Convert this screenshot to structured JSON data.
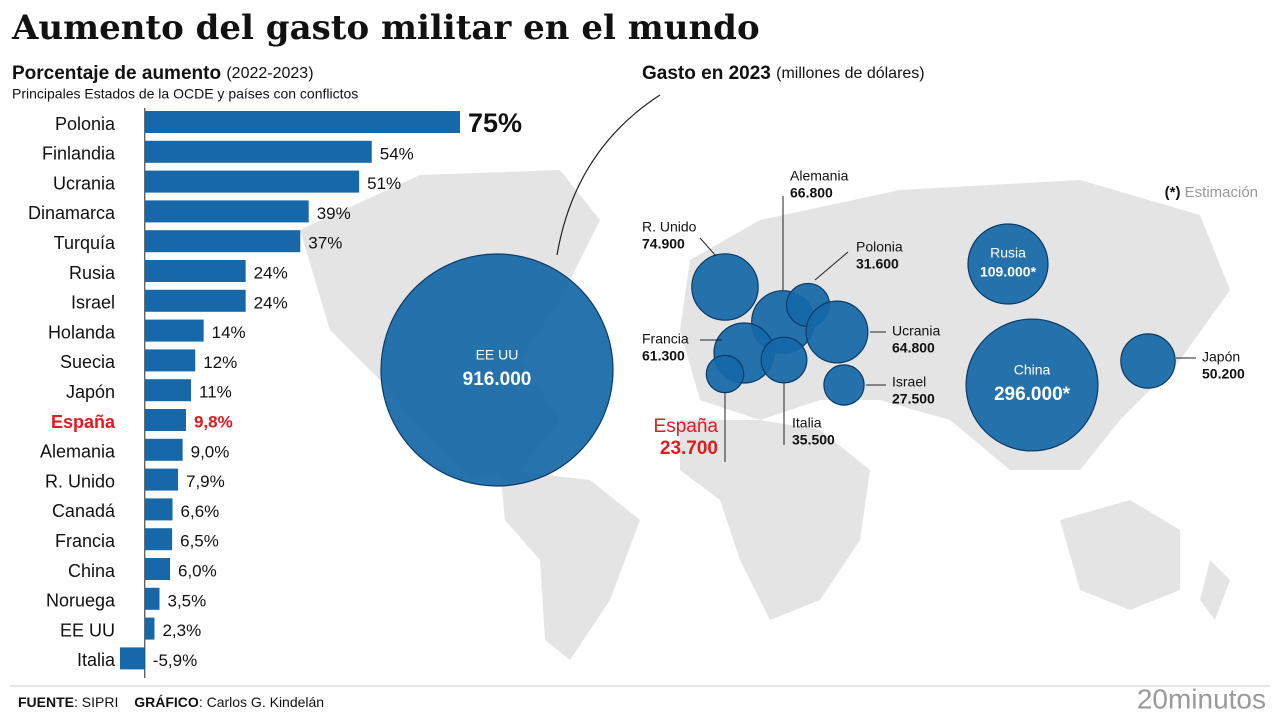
{
  "title": "Aumento del gasto militar en el mundo",
  "chart_data": [
    {
      "type": "hbar",
      "title": "Porcentaje de aumento",
      "period": "(2022-2023)",
      "subtitle": "Principales Estados de la OCDE y países con conflictos",
      "categories": [
        "Polonia",
        "Finlandia",
        "Ucrania",
        "Dinamarca",
        "Turquía",
        "Rusia",
        "Israel",
        "Holanda",
        "Suecia",
        "Japón",
        "España",
        "Alemania",
        "R. Unido",
        "Canadá",
        "Francia",
        "China",
        "Noruega",
        "EE UU",
        "Italia"
      ],
      "values": [
        75,
        54,
        51,
        39,
        37,
        24,
        24,
        14,
        12,
        11,
        9.8,
        9.0,
        7.9,
        6.6,
        6.5,
        6.0,
        3.5,
        2.3,
        -5.9
      ],
      "value_labels": [
        "75%",
        "54%",
        "51%",
        "39%",
        "37%",
        "24%",
        "24%",
        "14%",
        "12%",
        "11%",
        "9,8%",
        "9,0%",
        "7,9%",
        "6,6%",
        "6,5%",
        "6,0%",
        "3,5%",
        "2,3%",
        "-5,9%"
      ],
      "color": "#1668a8",
      "highlight_category": "España",
      "highlight_color": "#e3191e"
    },
    {
      "type": "bubble",
      "title": "Gasto en 2023",
      "unit": "(millones de dólares)",
      "note_marker": "(*)",
      "note": "Estimación",
      "categories": [
        "EE UU",
        "R. Unido",
        "Alemania",
        "Polonia",
        "Ucrania",
        "Francia",
        "Italia",
        "España",
        "Israel",
        "Rusia",
        "China",
        "Japón"
      ],
      "values": [
        916000,
        74900,
        66800,
        31600,
        64800,
        61300,
        35500,
        23700,
        27500,
        109000,
        296000,
        50200
      ],
      "value_labels": [
        "916.000",
        "74.900",
        "66.800",
        "31.600",
        "64.800",
        "61.300",
        "35.500",
        "23.700",
        "27.500",
        "109.000*",
        "296.000*",
        "50.200"
      ],
      "color": "#1668a8",
      "highlight_category": "España",
      "highlight_color": "#e3191e"
    }
  ],
  "footer": {
    "source_label": "FUENTE",
    "source": ": SIPRI",
    "credit_label": "GRÁFICO",
    "credit": ": Carlos G. Kindelán",
    "logo": "20minutos"
  }
}
